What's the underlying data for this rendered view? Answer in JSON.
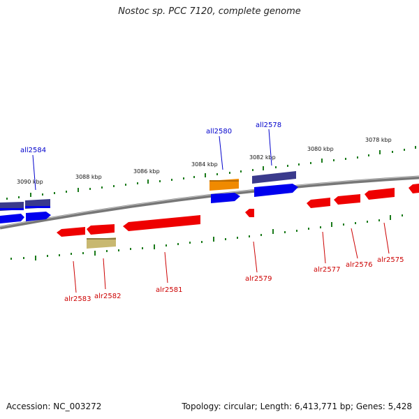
{
  "title": "Nostoc sp. PCC 7120, complete genome",
  "accession": "Accession: NC_003272",
  "topology": "Topology: circular; Length: 6,413,771 bp; Genes: 5,428",
  "colors": {
    "forward_gene": "#0000ee",
    "forward_dark": "#3a3a8c",
    "reverse_gene": "#ee0000",
    "orange_gene": "#f08a00",
    "khaki_gene": "#c8b870",
    "tick": "#1a7a1a",
    "axis": "#777777",
    "label_blue": "#0000cc",
    "label_red": "#cc0000"
  },
  "kbp_labels": [
    "3078 kbp",
    "3080 kbp",
    "3082 kbp",
    "3084 kbp",
    "3086 kbp",
    "3088 kbp",
    "3090 kbp"
  ],
  "genes_forward": [
    {
      "name": "all2584",
      "color": "forward"
    },
    {
      "name": "all2580",
      "color": "forward"
    },
    {
      "name": "all2578",
      "color": "forward"
    }
  ],
  "genes_reverse": [
    {
      "name": "alr2583"
    },
    {
      "name": "alr2582"
    },
    {
      "name": "alr2581"
    },
    {
      "name": "alr2579"
    },
    {
      "name": "alr2577"
    },
    {
      "name": "alr2576"
    },
    {
      "name": "alr2575"
    }
  ]
}
